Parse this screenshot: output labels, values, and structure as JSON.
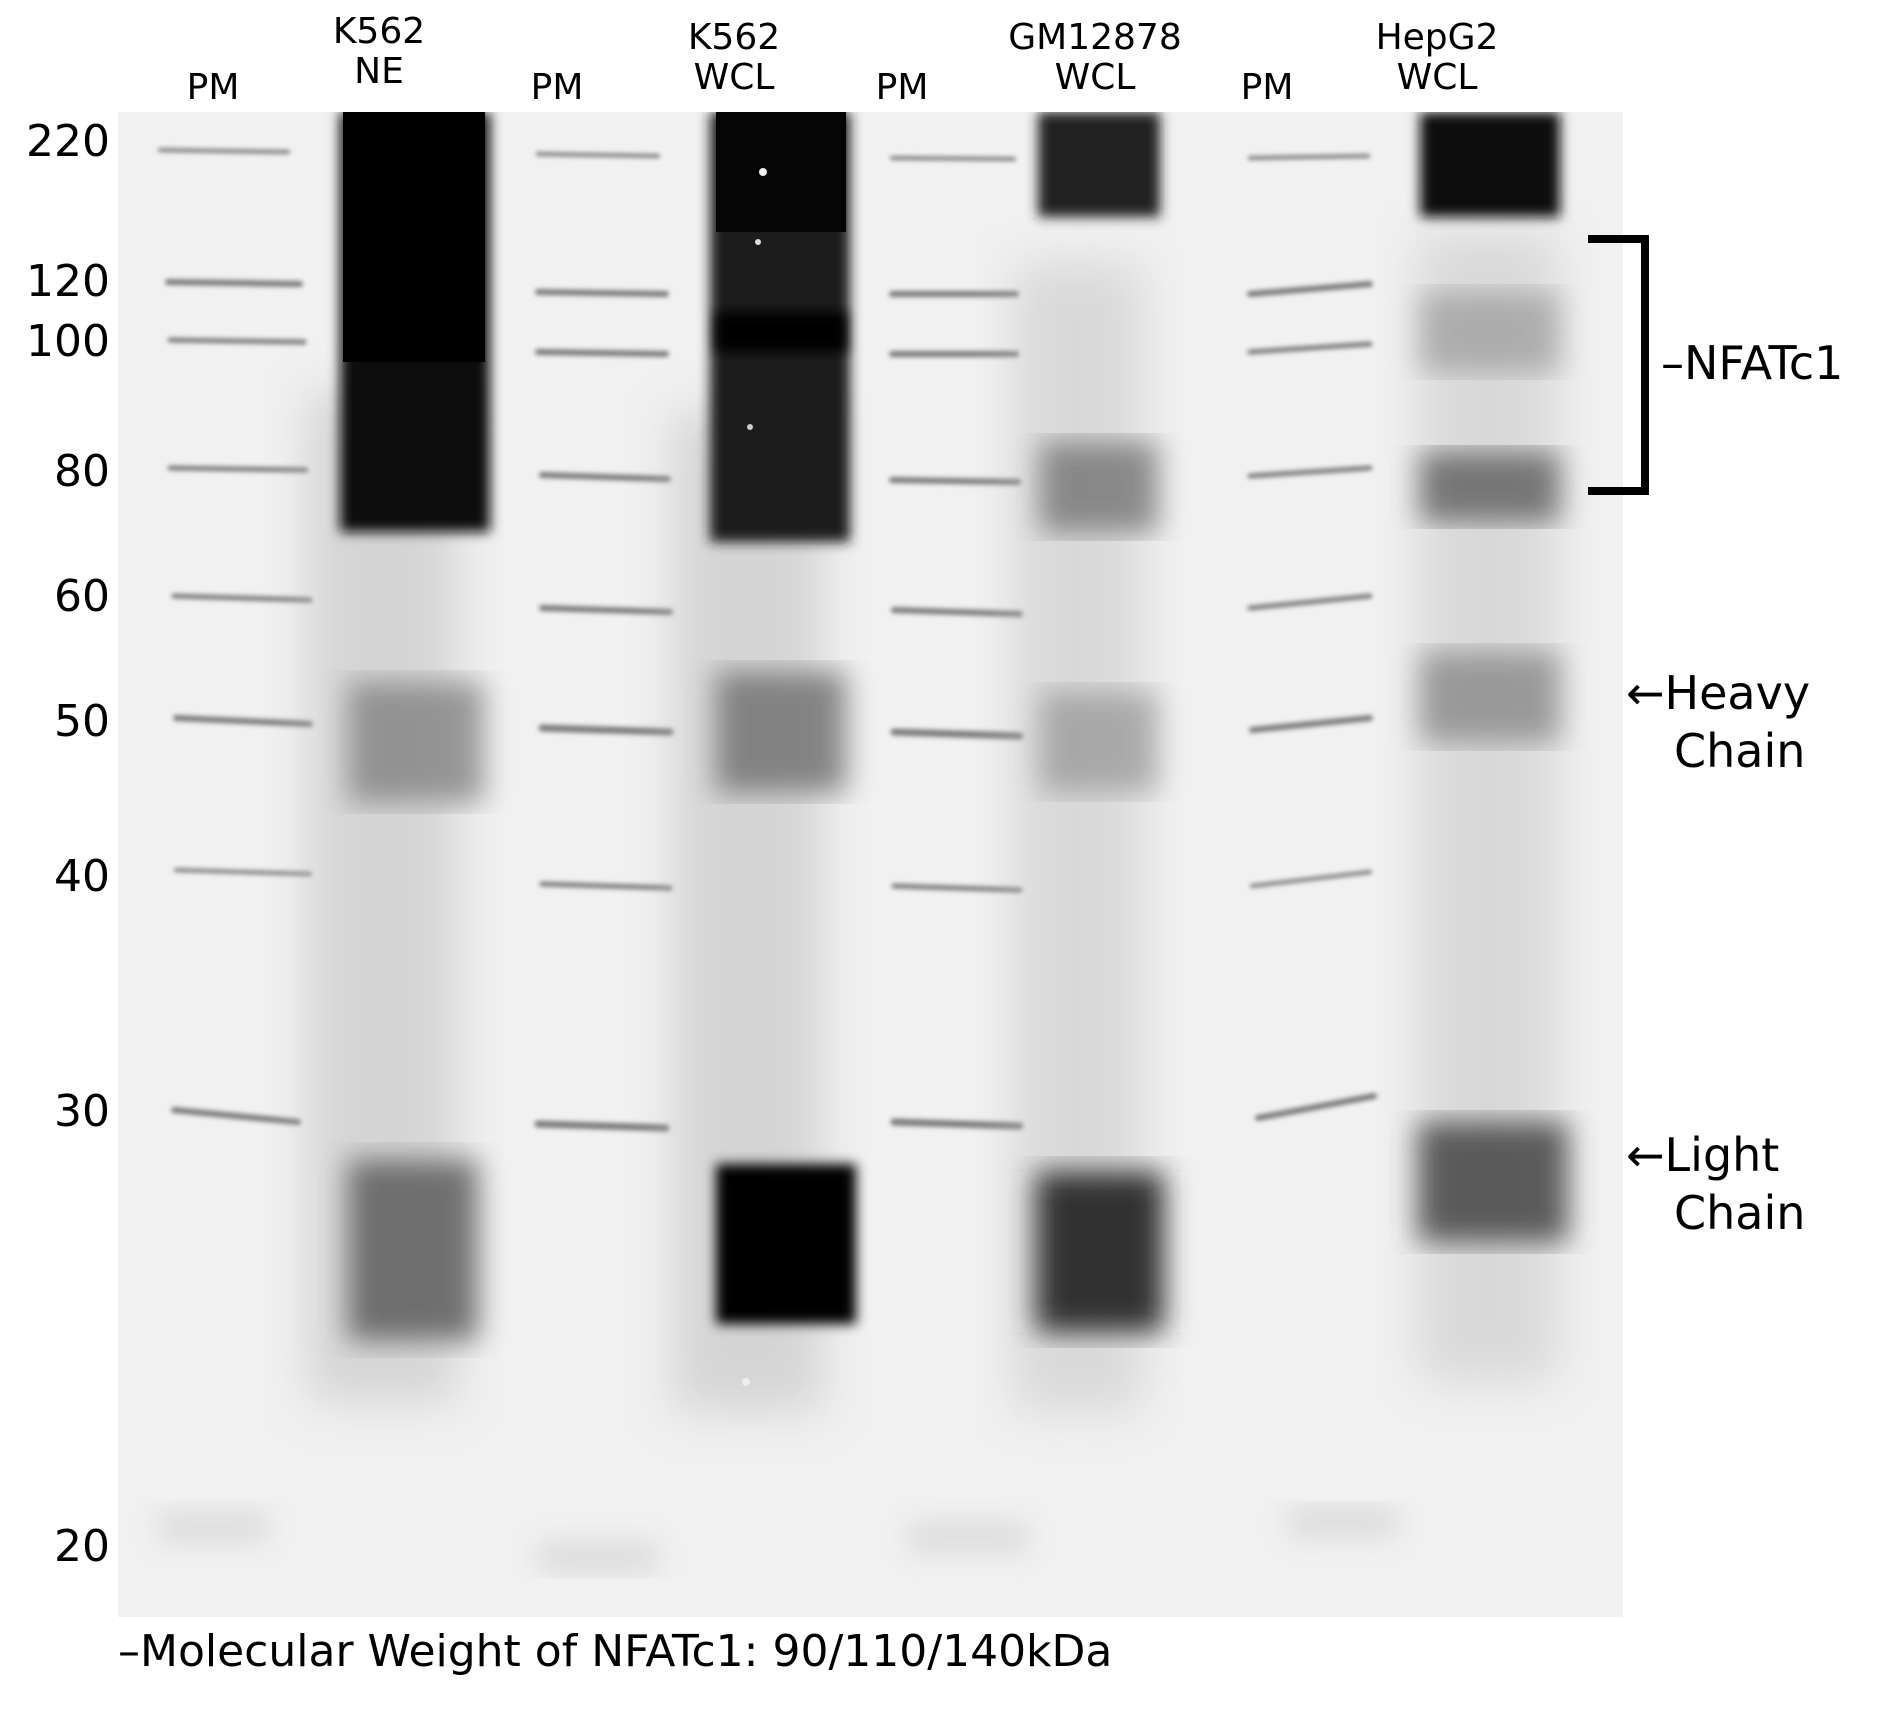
{
  "lanes": [
    {
      "line1": "PM",
      "line2": ""
    },
    {
      "line1": "K562",
      "line2": "NE"
    },
    {
      "line1": "PM",
      "line2": ""
    },
    {
      "line1": "K562",
      "line2": "WCL"
    },
    {
      "line1": "PM",
      "line2": ""
    },
    {
      "line1": "GM12878",
      "line2": "WCL"
    },
    {
      "line1": "PM",
      "line2": ""
    },
    {
      "line1": "HepG2",
      "line2": "WCL"
    }
  ],
  "markers": [
    "220",
    "120",
    "100",
    "80",
    "60",
    "50",
    "40",
    "30",
    "20"
  ],
  "annotations": {
    "nfatc1": "–NFATc1",
    "heavy_line1": "←Heavy",
    "heavy_line2": "Chain",
    "light_line1": "←Light",
    "light_line2": "Chain"
  },
  "footnote": "–Molecular Weight of NFATc1: 90/110/140kDa"
}
